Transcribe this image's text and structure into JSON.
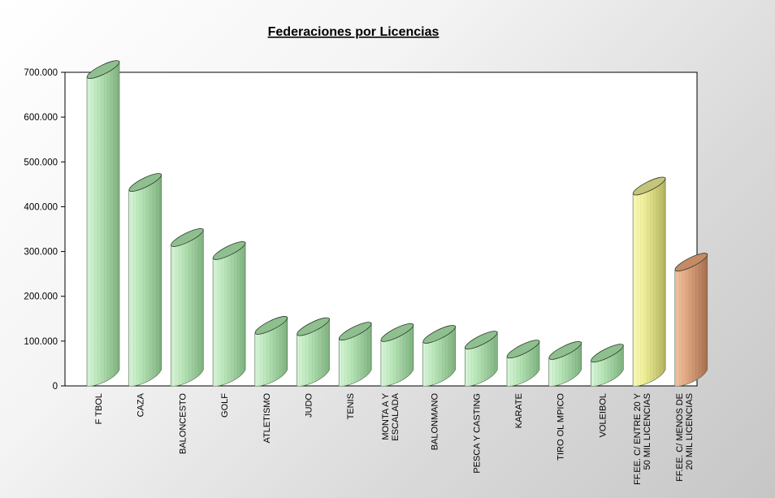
{
  "chart_data": {
    "type": "bar",
    "title": "Federaciones por Licencias",
    "xlabel": "",
    "ylabel": "",
    "ylim": [
      0,
      700000
    ],
    "yticks": [
      0,
      100000,
      200000,
      300000,
      400000,
      500000,
      600000,
      700000
    ],
    "ytick_labels": [
      "0",
      "100.000",
      "200.000",
      "300.000",
      "400.000",
      "500.000",
      "600.000",
      "700.000"
    ],
    "grid": false,
    "legend": "none",
    "categories": [
      [
        "F  TBOL"
      ],
      [
        "CAZA"
      ],
      [
        "BALONCESTO"
      ],
      [
        "GOLF"
      ],
      [
        "ATLETISMO"
      ],
      [
        "JUDO"
      ],
      [
        "TENIS"
      ],
      [
        "MONTA  A Y",
        "ESCALADA"
      ],
      [
        "BALONMANO"
      ],
      [
        "PESCA Y CASTING"
      ],
      [
        "KARATE"
      ],
      [
        "TIRO OL MPICO"
      ],
      [
        "VOLEIBOL"
      ],
      [
        "FF.EE. C/ ENTRE 20 Y",
        "50 MIL LICENCIAS"
      ],
      [
        "FF.EE. C/ MENOS DE",
        "20 MIL LICENCIAS"
      ]
    ],
    "values": [
      688000,
      436000,
      313000,
      284000,
      117000,
      114000,
      104000,
      101000,
      97000,
      84000,
      64000,
      61000,
      55000,
      428000,
      258000
    ],
    "colors": {
      "default": "#a8d8a8",
      "FF.EE. C/ ENTRE 20 Y 50 MIL LICENCIAS": "#e6e68a",
      "FF.EE. C/ MENOS DE 20 MIL LICENCIAS": "#d9a07a"
    }
  }
}
